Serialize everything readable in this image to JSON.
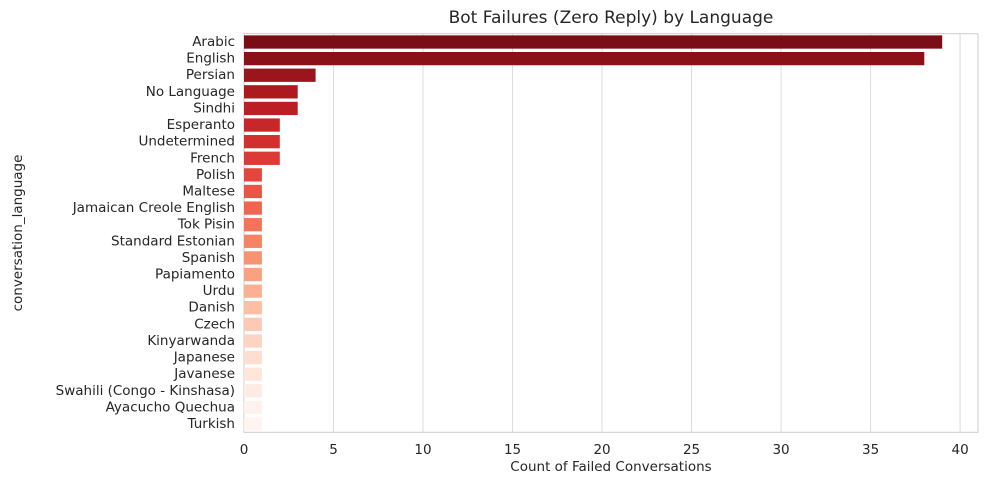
{
  "chart_data": {
    "type": "barh",
    "title": "Bot Failures (Zero Reply) by Language",
    "xlabel": "Count of Failed Conversations",
    "ylabel": "conversation_language",
    "categories": [
      "Arabic",
      "English",
      "Persian",
      "No Language",
      "Sindhi",
      "Esperanto",
      "Undetermined",
      "French",
      "Polish",
      "Maltese",
      "Jamaican Creole English",
      "Tok Pisin",
      "Standard Estonian",
      "Spanish",
      "Papiamento",
      "Urdu",
      "Danish",
      "Czech",
      "Kinyarwanda",
      "Japanese",
      "Javanese",
      "Swahili (Congo - Kinshasa)",
      "Ayacucho Quechua",
      "Turkish"
    ],
    "values": [
      39,
      38,
      4,
      3,
      3,
      2,
      2,
      2,
      1,
      1,
      1,
      1,
      1,
      1,
      1,
      1,
      1,
      1,
      1,
      1,
      1,
      1,
      1,
      1
    ],
    "colors": [
      "#7b0d17",
      "#8a1118",
      "#9c151d",
      "#ac1a20",
      "#bb1e24",
      "#c8272a",
      "#d32f2f",
      "#dc3a36",
      "#e4463d",
      "#ea5645",
      "#ef654e",
      "#f37458",
      "#f68464",
      "#f89372",
      "#faa182",
      "#fbb093",
      "#fcbea5",
      "#fcc9b4",
      "#fdd4c2",
      "#fedecf",
      "#fee6da",
      "#feece4",
      "#fff1ec",
      "#fff4ef"
    ],
    "xlim": [
      0,
      41
    ],
    "xticks": [
      0,
      5,
      10,
      15,
      20,
      25,
      30,
      35,
      40
    ],
    "grid": true
  }
}
